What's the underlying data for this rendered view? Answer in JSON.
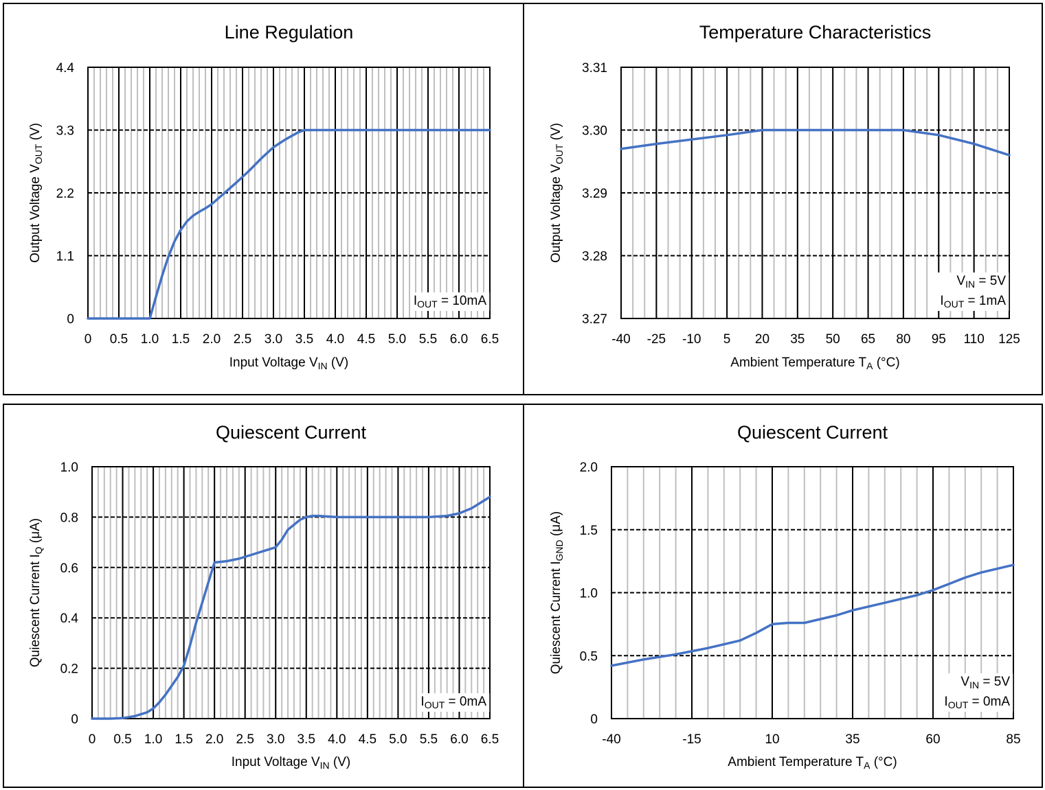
{
  "charts": {
    "line_regulation": {
      "title": "Line Regulation",
      "xlabel": "Input Voltage V",
      "xlabel_sub": "IN",
      "xlabel_suffix": " (V)",
      "ylabel": "Output Voltage V",
      "ylabel_sub": "OUT",
      "ylabel_suffix": " (V)",
      "annotation": [
        {
          "main": "I",
          "sub": "OUT",
          "rest": " = 10mA"
        }
      ]
    },
    "temperature_characteristics": {
      "title": "Temperature Characteristics",
      "xlabel": "Ambient Temperature T",
      "xlabel_sub": "A",
      "xlabel_suffix": " (°C)",
      "ylabel": "Output Voltage V",
      "ylabel_sub": "OUT",
      "ylabel_suffix": " (V)",
      "annotation": [
        {
          "main": "V",
          "sub": "IN",
          "rest": " = 5V"
        },
        {
          "main": "I",
          "sub": "OUT",
          "rest": " = 1mA"
        }
      ]
    },
    "quiescent_current_vin": {
      "title": "Quiescent Current",
      "xlabel": "Input Voltage V",
      "xlabel_sub": "IN",
      "xlabel_suffix": " (V)",
      "ylabel": "Quiescent Current I",
      "ylabel_sub": "Q",
      "ylabel_suffix": " (μA)",
      "annotation": [
        {
          "main": "I",
          "sub": "OUT",
          "rest": " = 0mA"
        }
      ]
    },
    "quiescent_current_temp": {
      "title": "Quiescent Current",
      "xlabel": "Ambient Temperature T",
      "xlabel_sub": "A",
      "xlabel_suffix": " (°C)",
      "ylabel": "Quiescent Current I",
      "ylabel_sub": "GND",
      "ylabel_suffix": " (μA)",
      "annotation": [
        {
          "main": "V",
          "sub": "IN",
          "rest": " = 5V"
        },
        {
          "main": "I",
          "sub": "OUT",
          "rest": " = 0mA"
        }
      ]
    }
  },
  "chart_data": [
    {
      "type": "line",
      "title": "Line Regulation",
      "xlabel": "Input Voltage VIN (V)",
      "ylabel": "Output Voltage VOUT (V)",
      "xlim": [
        0,
        6.5
      ],
      "ylim": [
        0,
        4.4
      ],
      "xticks": [
        0,
        0.5,
        1.0,
        1.5,
        2.0,
        2.5,
        3.0,
        3.5,
        4.0,
        4.5,
        5.0,
        5.5,
        6.0,
        6.5
      ],
      "xtick_labels": [
        "0",
        "0.5",
        "1.0",
        "1.5",
        "2.0",
        "2.5",
        "3.0",
        "3.5",
        "4.0",
        "4.5",
        "5.0",
        "5.5",
        "6.0",
        "6.5"
      ],
      "yticks": [
        0,
        1.1,
        2.2,
        3.3,
        4.4
      ],
      "ytick_labels": [
        "0",
        "1.1",
        "2.2",
        "3.3",
        "4.4"
      ],
      "minor_x_step": 0.1,
      "grid": true,
      "line_color": "#4472c4",
      "series": [
        {
          "x": [
            0,
            1.0,
            1.1,
            1.2,
            1.3,
            1.4,
            1.5,
            1.6,
            1.7,
            1.8,
            1.9,
            2.0,
            2.2,
            2.4,
            2.6,
            2.8,
            3.0,
            3.2,
            3.4,
            3.5,
            4.0,
            5.0,
            6.0,
            6.5
          ],
          "y": [
            0,
            0,
            0.38,
            0.75,
            1.08,
            1.35,
            1.55,
            1.7,
            1.8,
            1.87,
            1.93,
            2.0,
            2.19,
            2.38,
            2.58,
            2.8,
            3.0,
            3.14,
            3.26,
            3.3,
            3.3,
            3.3,
            3.3,
            3.3
          ]
        }
      ]
    },
    {
      "type": "line",
      "title": "Temperature Characteristics",
      "xlabel": "Ambient Temperature TA (°C)",
      "ylabel": "Output Voltage VOUT (V)",
      "xlim": [
        -40,
        125
      ],
      "ylim": [
        3.27,
        3.31
      ],
      "xticks": [
        -40,
        -25,
        -10,
        5,
        20,
        35,
        50,
        65,
        80,
        95,
        110,
        125
      ],
      "xtick_labels": [
        "-40",
        "-25",
        "-10",
        "5",
        "20",
        "35",
        "50",
        "65",
        "80",
        "95",
        "110",
        "125"
      ],
      "yticks": [
        3.27,
        3.28,
        3.29,
        3.3,
        3.31
      ],
      "ytick_labels": [
        "3.27",
        "3.28",
        "3.29",
        "3.30",
        "3.31"
      ],
      "minor_x_step": 5,
      "grid": true,
      "line_color": "#4472c4",
      "series": [
        {
          "x": [
            -40,
            -25,
            -10,
            5,
            20,
            35,
            50,
            65,
            80,
            95,
            110,
            125
          ],
          "y": [
            3.297,
            3.2978,
            3.2985,
            3.2992,
            3.3,
            3.3,
            3.3,
            3.3,
            3.3,
            3.2992,
            3.2978,
            3.296
          ]
        }
      ]
    },
    {
      "type": "line",
      "title": "Quiescent Current",
      "xlabel": "Input Voltage VIN (V)",
      "ylabel": "Quiescent Current IQ (μA)",
      "xlim": [
        0,
        6.5
      ],
      "ylim": [
        0,
        1.0
      ],
      "xticks": [
        0,
        0.5,
        1.0,
        1.5,
        2.0,
        2.5,
        3.0,
        3.5,
        4.0,
        4.5,
        5.0,
        5.5,
        6.0,
        6.5
      ],
      "xtick_labels": [
        "0",
        "0.5",
        "1.0",
        "1.5",
        "2.0",
        "2.5",
        "3.0",
        "3.5",
        "4.0",
        "4.5",
        "5.0",
        "5.5",
        "6.0",
        "6.5"
      ],
      "yticks": [
        0,
        0.2,
        0.4,
        0.6,
        0.8,
        1.0
      ],
      "ytick_labels": [
        "0",
        "0.2",
        "0.4",
        "0.6",
        "0.8",
        "1.0"
      ],
      "minor_x_step": 0.1,
      "grid": true,
      "line_color": "#4472c4",
      "series": [
        {
          "x": [
            0,
            0.3,
            0.5,
            0.7,
            0.9,
            1.0,
            1.1,
            1.2,
            1.3,
            1.4,
            1.5,
            1.6,
            1.7,
            1.8,
            1.9,
            2.0,
            2.2,
            2.4,
            2.6,
            2.8,
            3.0,
            3.1,
            3.2,
            3.3,
            3.4,
            3.5,
            3.6,
            3.7,
            4.0,
            5.0,
            5.5,
            5.8,
            6.0,
            6.2,
            6.5
          ],
          "y": [
            0,
            0,
            0.002,
            0.01,
            0.025,
            0.04,
            0.065,
            0.095,
            0.13,
            0.165,
            0.21,
            0.29,
            0.38,
            0.46,
            0.54,
            0.62,
            0.625,
            0.635,
            0.65,
            0.665,
            0.68,
            0.71,
            0.75,
            0.77,
            0.79,
            0.8,
            0.805,
            0.805,
            0.8,
            0.8,
            0.8,
            0.805,
            0.815,
            0.835,
            0.88
          ]
        }
      ]
    },
    {
      "type": "line",
      "title": "Quiescent Current",
      "xlabel": "Ambient Temperature TA (°C)",
      "ylabel": "Quiescent Current IGND (μA)",
      "xlim": [
        -40,
        85
      ],
      "ylim": [
        0,
        2.0
      ],
      "xticks": [
        -40,
        -15,
        10,
        35,
        60,
        85
      ],
      "xtick_labels": [
        "-40",
        "-15",
        "10",
        "35",
        "60",
        "85"
      ],
      "yticks": [
        0,
        0.5,
        1.0,
        1.5,
        2.0
      ],
      "ytick_labels": [
        "0",
        "0.5",
        "1.0",
        "1.5",
        "2.0"
      ],
      "minor_x_step": 5,
      "grid": true,
      "line_color": "#4472c4",
      "series": [
        {
          "x": [
            -40,
            -30,
            -20,
            -10,
            0,
            5,
            10,
            15,
            20,
            25,
            30,
            35,
            40,
            45,
            50,
            55,
            60,
            65,
            70,
            75,
            80,
            85
          ],
          "y": [
            0.42,
            0.47,
            0.51,
            0.56,
            0.62,
            0.68,
            0.75,
            0.76,
            0.76,
            0.79,
            0.82,
            0.86,
            0.89,
            0.92,
            0.95,
            0.98,
            1.02,
            1.07,
            1.12,
            1.16,
            1.19,
            1.22
          ]
        }
      ]
    }
  ]
}
